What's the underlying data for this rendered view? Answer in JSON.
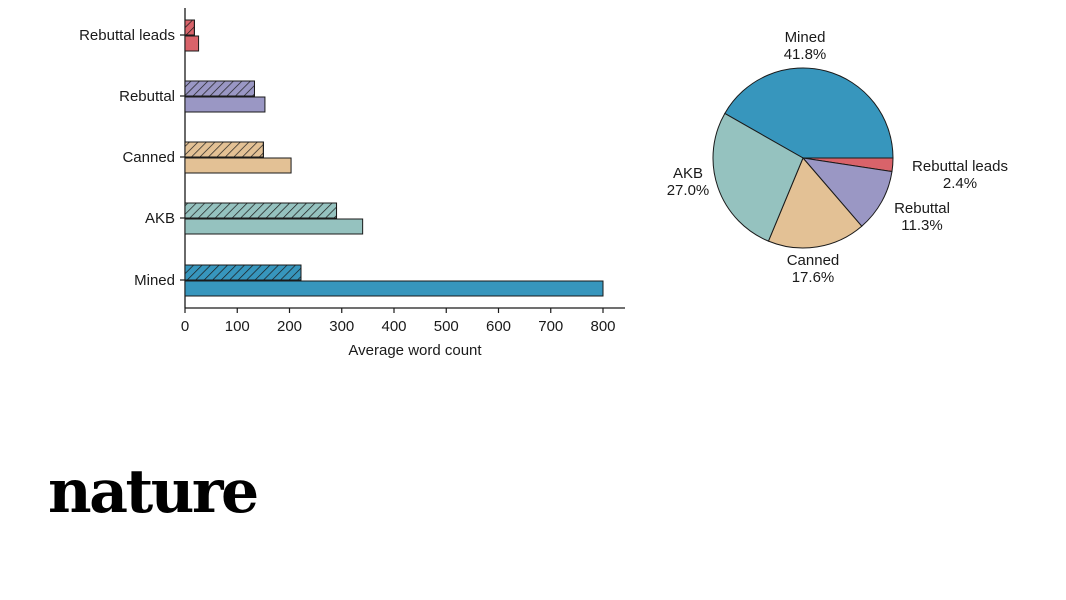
{
  "chart_data": [
    {
      "type": "bar",
      "orientation": "horizontal",
      "categories": [
        "Rebuttal leads",
        "Rebuttal",
        "Canned",
        "AKB",
        "Mined"
      ],
      "series": [
        {
          "style": "hatched",
          "values": [
            18,
            133,
            150,
            290,
            222
          ]
        },
        {
          "style": "solid",
          "values": [
            26,
            153,
            203,
            340,
            800
          ]
        }
      ],
      "colors": [
        "#d9636a",
        "#9a97c4",
        "#e3c195",
        "#95c2bf",
        "#3796bd"
      ],
      "xlabel": "Average word count",
      "xlim": [
        0,
        850
      ],
      "xticks": [
        0,
        100,
        200,
        300,
        400,
        500,
        600,
        700,
        800
      ]
    },
    {
      "type": "pie",
      "slices": [
        {
          "label": "Mined",
          "pct_label": "41.8%",
          "value": 41.8,
          "color": "#3796bd"
        },
        {
          "label": "Rebuttal leads",
          "pct_label": "2.4%",
          "value": 2.4,
          "color": "#d9636a"
        },
        {
          "label": "Rebuttal",
          "pct_label": "11.3%",
          "value": 11.3,
          "color": "#9a97c4"
        },
        {
          "label": "Canned",
          "pct_label": "17.6%",
          "value": 17.6,
          "color": "#e3c195"
        },
        {
          "label": "AKB",
          "pct_label": "27.0%",
          "value": 27.0,
          "color": "#95c2bf"
        }
      ]
    }
  ],
  "brand": {
    "logo_text": "nature"
  }
}
